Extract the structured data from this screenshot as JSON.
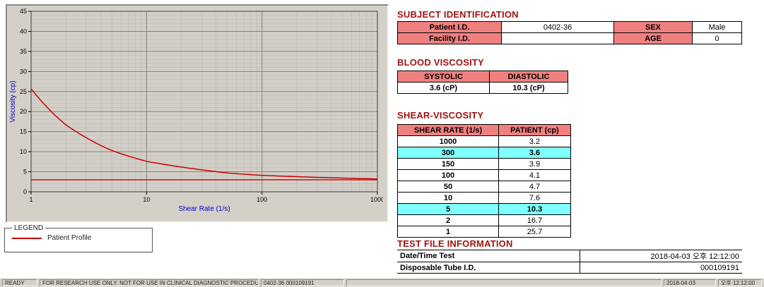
{
  "chart_data": {
    "type": "line",
    "title": "",
    "xlabel": "Shear Rate (1/s)",
    "ylabel": "Viscosity (cp)",
    "x_scale": "log",
    "xlim": [
      1,
      1000
    ],
    "ylim": [
      0,
      45
    ],
    "y_tick_step": 5,
    "x_ticks": [
      1,
      10,
      100,
      1000
    ],
    "grid": true,
    "legend_position": "below",
    "reference_line_y": 3.0,
    "series": [
      {
        "name": "Patient Profile",
        "color": "#cc0000",
        "x": [
          1,
          2,
          5,
          10,
          50,
          100,
          150,
          300,
          1000
        ],
        "y": [
          25.7,
          16.7,
          10.3,
          7.6,
          4.7,
          4.1,
          3.9,
          3.6,
          3.2
        ]
      }
    ]
  },
  "legend": {
    "title": "LEGEND",
    "series_label": "Patient Profile"
  },
  "subject": {
    "heading": "SUBJECT IDENTIFICATION",
    "patient_id_label": "Patient I.D.",
    "patient_id": "0402-36",
    "sex_label": "SEX",
    "sex": "Male",
    "facility_id_label": "Facility I.D.",
    "facility_id": "",
    "age_label": "AGE",
    "age": "0"
  },
  "blood_viscosity": {
    "heading": "BLOOD VISCOSITY",
    "columns": [
      "SYSTOLIC",
      "DIASTOLIC"
    ],
    "systolic": "3.6 (cP)",
    "diastolic": "10.3 (cP)"
  },
  "shear_viscosity": {
    "heading": "SHEAR-VISCOSITY",
    "columns": [
      "SHEAR RATE (1/s)",
      "PATIENT (cp)"
    ],
    "rows": [
      {
        "rate": "1000",
        "value": "3.2",
        "highlight": false
      },
      {
        "rate": "300",
        "value": "3.6",
        "highlight": true
      },
      {
        "rate": "150",
        "value": "3.9",
        "highlight": false
      },
      {
        "rate": "100",
        "value": "4.1",
        "highlight": false
      },
      {
        "rate": "50",
        "value": "4.7",
        "highlight": false
      },
      {
        "rate": "10",
        "value": "7.6",
        "highlight": false
      },
      {
        "rate": "5",
        "value": "10.3",
        "highlight": true
      },
      {
        "rate": "2",
        "value": "16.7",
        "highlight": false
      },
      {
        "rate": "1",
        "value": "25.7",
        "highlight": false
      }
    ]
  },
  "test_file": {
    "heading": "TEST FILE INFORMATION",
    "rows": [
      {
        "label": "Date/Time Test",
        "value": "2018-04-03 오후 12:12:00"
      },
      {
        "label": "Disposable Tube I.D.",
        "value": "000109191"
      }
    ]
  },
  "status_bar": {
    "mode": "READY",
    "message": "FOR RESEARCH USE ONLY. NOT FOR USE IN CLINICAL DIAGNOSTIC PROCEDURES.",
    "test_id": "0402-36 000109191",
    "date": "2018-04-03",
    "time": "오후 12:12:00"
  },
  "colors": {
    "heading": "#a01414",
    "label_cell": "#f08080",
    "highlight_row": "#7fffff",
    "series_line": "#cc0000",
    "chart_bg": "#d4d0c8",
    "axis_label": "#0000cc"
  }
}
